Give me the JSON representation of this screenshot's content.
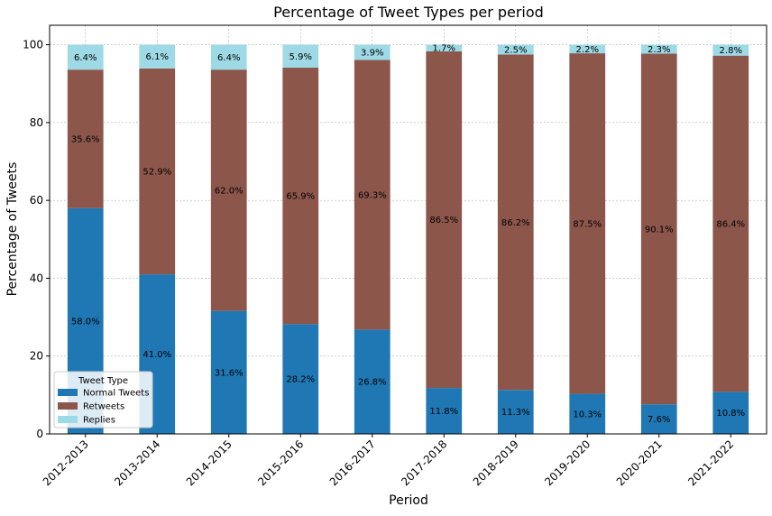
{
  "chart_data": {
    "type": "bar",
    "stacked": true,
    "title": "Percentage of Tweet Types per period",
    "xlabel": "Period",
    "ylabel": "Percentage of Tweets",
    "ylim": [
      0,
      105
    ],
    "yticks": [
      "0",
      "20",
      "40",
      "60",
      "80",
      "100"
    ],
    "grid": true,
    "legend_title": "Tweet Type",
    "legend_position": "lower-left",
    "categories": [
      "2012-2013",
      "2013-2014",
      "2014-2015",
      "2015-2016",
      "2016-2017",
      "2017-2018",
      "2018-2019",
      "2019-2020",
      "2020-2021",
      "2021-2022"
    ],
    "series": [
      {
        "name": "Normal Tweets",
        "color": "#1f77b4",
        "values": [
          58.0,
          41.0,
          31.6,
          28.2,
          26.8,
          11.8,
          11.3,
          10.3,
          7.6,
          10.8
        ],
        "labels": [
          "58.0%",
          "41.0%",
          "31.6%",
          "28.2%",
          "26.8%",
          "11.8%",
          "11.3%",
          "10.3%",
          "7.6%",
          "10.8%"
        ]
      },
      {
        "name": "Retweets",
        "color": "#8c564b",
        "values": [
          35.6,
          52.9,
          62.0,
          65.9,
          69.3,
          86.5,
          86.2,
          87.5,
          90.1,
          86.4
        ],
        "labels": [
          "35.6%",
          "52.9%",
          "62.0%",
          "65.9%",
          "69.3%",
          "86.5%",
          "86.2%",
          "87.5%",
          "90.1%",
          "86.4%"
        ]
      },
      {
        "name": "Replies",
        "color": "#9edae5",
        "values": [
          6.4,
          6.1,
          6.4,
          5.9,
          3.9,
          1.7,
          2.5,
          2.2,
          2.3,
          2.8
        ],
        "labels": [
          "6.4%",
          "6.1%",
          "6.4%",
          "5.9%",
          "3.9%",
          "1.7%",
          "2.5%",
          "2.2%",
          "2.3%",
          "2.8%"
        ]
      }
    ]
  }
}
